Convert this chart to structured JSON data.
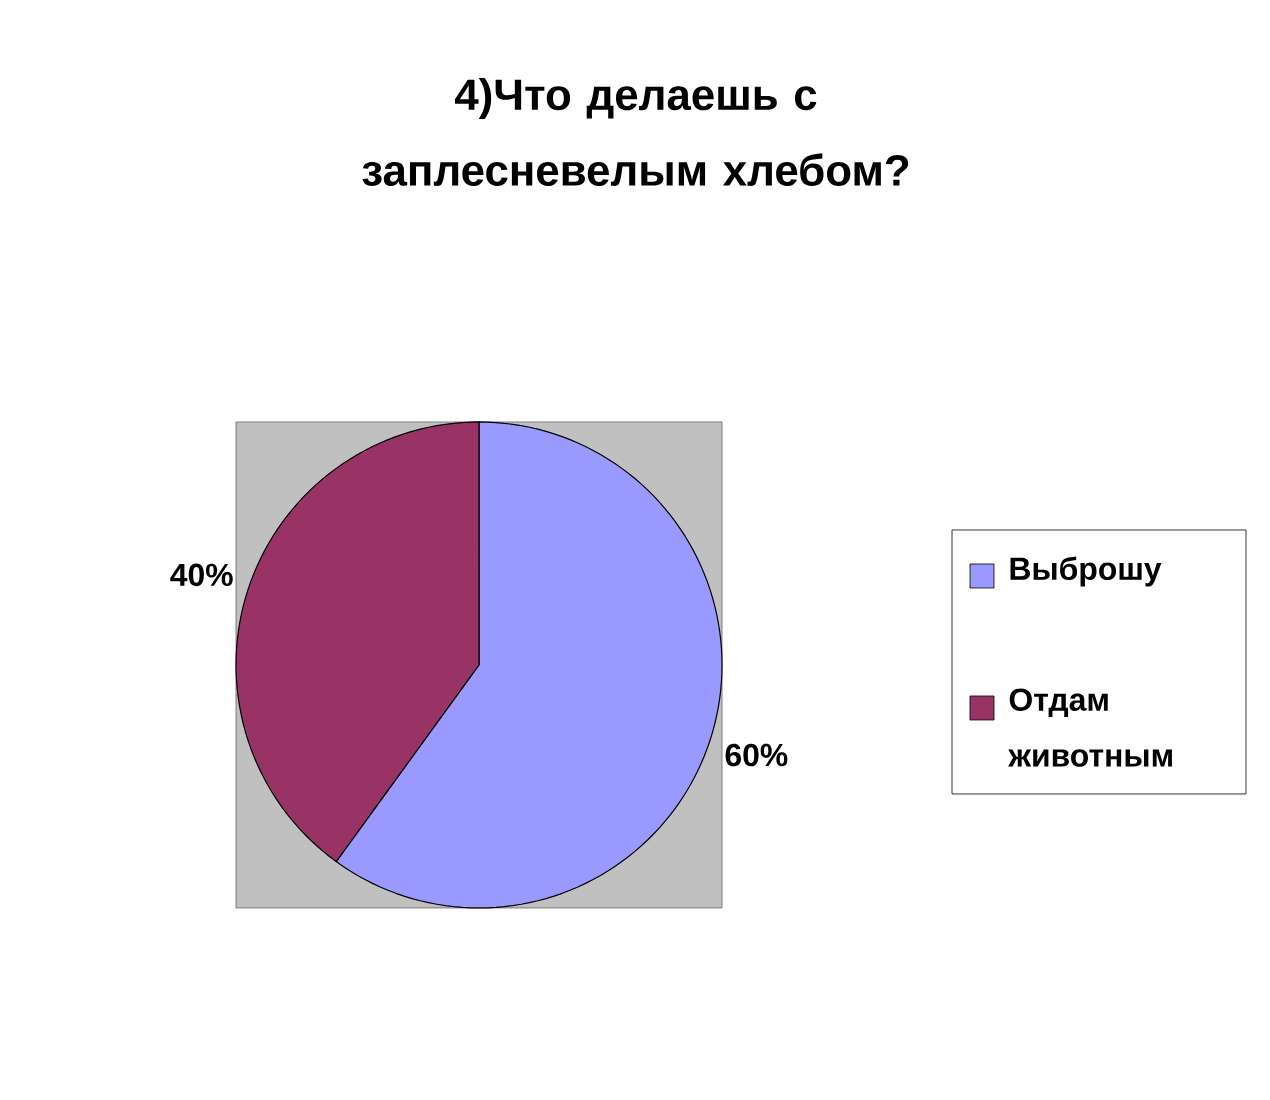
{
  "chart_data": {
    "type": "pie",
    "title": "4)Что делаешь с заплесневелым хлебом?",
    "categories": [
      "Выброшу",
      "Отдам животным"
    ],
    "values": [
      60,
      40
    ],
    "colors": [
      "#9999ff",
      "#993366"
    ],
    "value_labels": [
      "60%",
      "40%"
    ],
    "legend": "right"
  }
}
